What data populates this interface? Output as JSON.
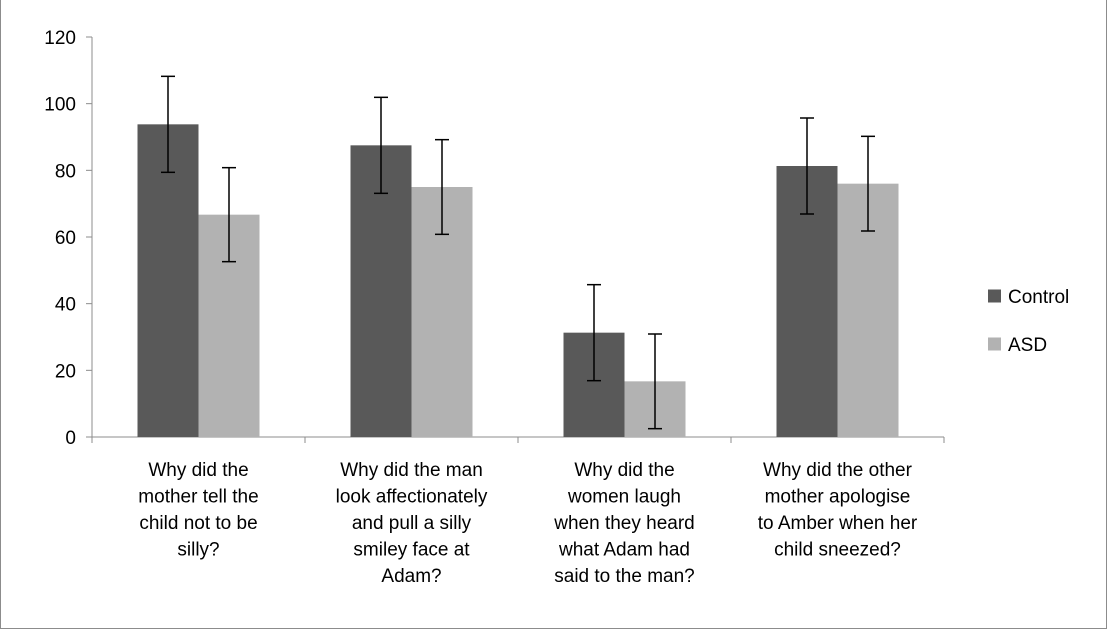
{
  "chart_data": {
    "type": "bar",
    "title": "",
    "xlabel": "",
    "ylabel": "",
    "ylim": [
      0,
      120
    ],
    "yticks": [
      0,
      20,
      40,
      60,
      80,
      100,
      120
    ],
    "grid": false,
    "legend_position": "right",
    "categories": [
      [
        "Why did the",
        "mother tell the",
        "child not to be",
        "silly?"
      ],
      [
        "Why did the man",
        "look affectionately",
        "and pull a silly",
        "smiley face at",
        "Adam?"
      ],
      [
        "Why did the",
        "women laugh",
        "when they heard",
        "what Adam had",
        "said to the man?"
      ],
      [
        "Why did the other",
        "mother apologise",
        "to Amber when her",
        "child sneezed?"
      ]
    ],
    "series": [
      {
        "name": "Control",
        "color": "#595959",
        "values": [
          93.8,
          87.5,
          31.3,
          81.3
        ],
        "errors": [
          14.4,
          14.4,
          14.4,
          14.4
        ]
      },
      {
        "name": "ASD",
        "color": "#b2b2b2",
        "values": [
          66.7,
          75.0,
          16.7,
          76.0
        ],
        "errors": [
          14.1,
          14.2,
          14.2,
          14.2
        ]
      }
    ]
  }
}
